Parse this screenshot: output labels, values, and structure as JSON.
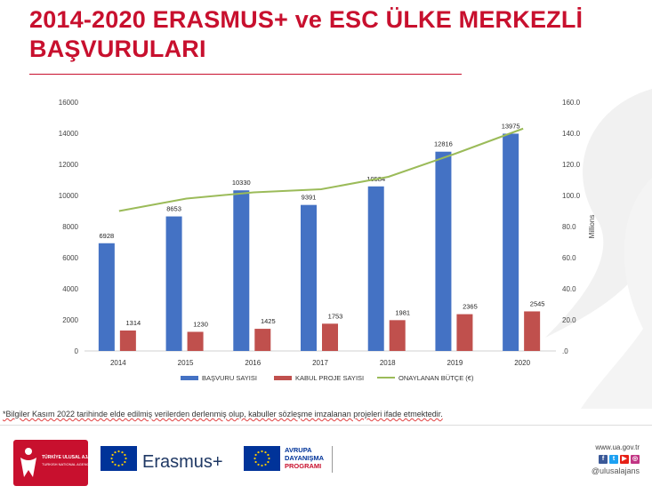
{
  "header": {
    "title_line1": "2014-2020 ERASMUS+ ve ESC ÜLKE MERKEZLİ",
    "title_line2": "BAŞVURULARI"
  },
  "chart_data": {
    "type": "bar",
    "categories": [
      "2014",
      "2015",
      "2016",
      "2017",
      "2018",
      "2019",
      "2020"
    ],
    "series": [
      {
        "name": "BAŞVURU SAYISI",
        "type": "bar",
        "axis": "left",
        "color": "#4472c4",
        "values": [
          6928,
          8653,
          10330,
          9391,
          10584,
          12816,
          13975
        ],
        "labels": [
          "6928",
          "8653",
          "10330",
          "9391",
          "10584",
          "12816",
          "13975"
        ]
      },
      {
        "name": "KABUL PROJE SAYISI",
        "type": "bar",
        "axis": "left",
        "color": "#c0504d",
        "values": [
          1314,
          1230,
          1425,
          1753,
          1981,
          2365,
          2545
        ],
        "labels": [
          "1314",
          "1230",
          "1425",
          "1753",
          "1981",
          "2365",
          "2545"
        ]
      },
      {
        "name": "ONAYLANAN BÜTÇE (€)",
        "type": "line",
        "axis": "right",
        "color": "#9bbb59",
        "values": [
          90,
          98,
          102,
          104,
          112,
          127,
          143
        ]
      }
    ],
    "y_left": {
      "min": 0,
      "max": 16000,
      "ticks": [
        "0",
        "2000",
        "4000",
        "6000",
        "8000",
        "10000",
        "12000",
        "14000",
        "16000"
      ]
    },
    "y_right": {
      "min": 0,
      "max": 160,
      "label": "Millions",
      "ticks": [
        ".0",
        "20.0",
        "40.0",
        "60.0",
        "80.0",
        "100.0",
        "120.0",
        "140.0",
        "160.0"
      ]
    },
    "legend_position": "bottom",
    "grid": false
  },
  "footnote": "*Bilgiler Kasım 2022 tarihinde elde edilmiş verilerden derlenmiş olup, kabuller sözleşme imzalanan projeleri ifade etmektedir.",
  "footer": {
    "ua_logo_line1": "TÜRKİYE ULUSAL AJANSI",
    "ua_logo_line2": "TURKISH NATIONAL AGENCY",
    "erasmus_label": "Erasmus+",
    "ad_line1": "AVRUPA",
    "ad_line2": "DAYANIŞMA",
    "ad_line3": "PROGRAMI",
    "website": "www.ua.gov.tr",
    "handle": "@ulusalajans",
    "social_icons": [
      "facebook-icon",
      "twitter-icon",
      "youtube-icon",
      "instagram-icon"
    ]
  }
}
